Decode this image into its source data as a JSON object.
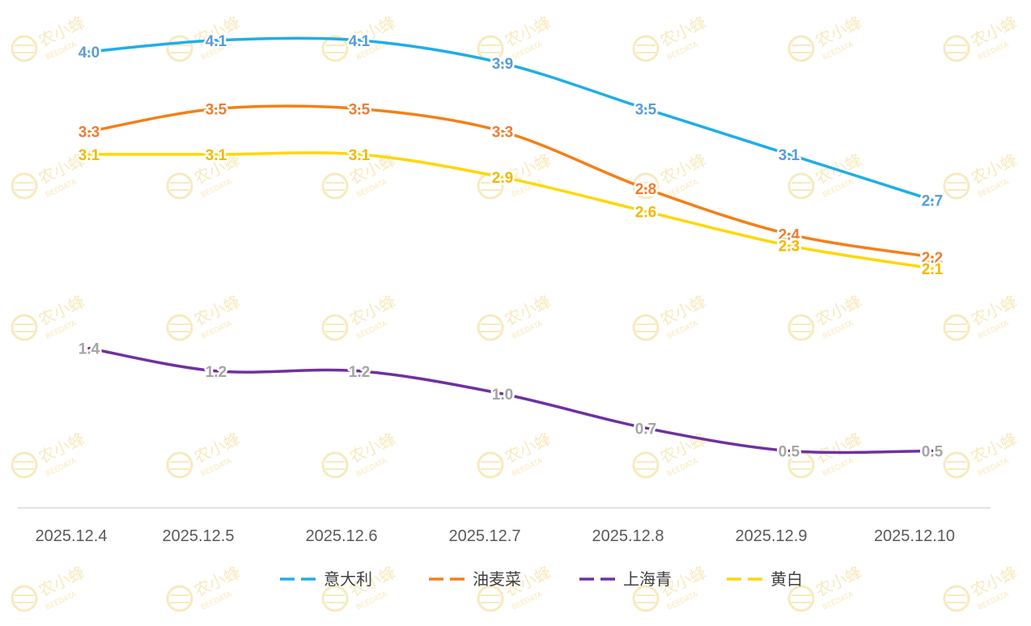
{
  "chart_data": {
    "type": "line",
    "title": "",
    "xlabel": "",
    "ylabel": "",
    "categories": [
      "2025.12.4",
      "2025.12.5",
      "2025.12.6",
      "2025.12.7",
      "2025.12.8",
      "2025.12.9",
      "2025.12.10"
    ],
    "ylim": [
      0,
      4.5
    ],
    "grid": false,
    "legend": "bottom",
    "series": [
      {
        "name": "意大利",
        "color": "#1eaee8",
        "label_color": "#5b9bd5",
        "values": [
          4.0,
          4.1,
          4.1,
          3.9,
          3.5,
          3.1,
          2.7
        ]
      },
      {
        "name": "油麦菜",
        "color": "#f57f17",
        "label_color": "#ed7d31",
        "values": [
          3.3,
          3.5,
          3.5,
          3.3,
          2.8,
          2.4,
          2.2
        ]
      },
      {
        "name": "上海青",
        "color": "#7030a0",
        "label_color": "#a5a5a5",
        "values": [
          1.4,
          1.2,
          1.2,
          1.0,
          0.7,
          0.5,
          0.5
        ]
      },
      {
        "name": "黄白",
        "color": "#ffd700",
        "label_color": "#f2b800",
        "values": [
          3.1,
          3.1,
          3.1,
          2.9,
          2.6,
          2.3,
          2.1
        ]
      }
    ]
  },
  "watermark": {
    "text": "农小蜂",
    "subtext": "BEEDATA",
    "icon": "bee-icon"
  }
}
